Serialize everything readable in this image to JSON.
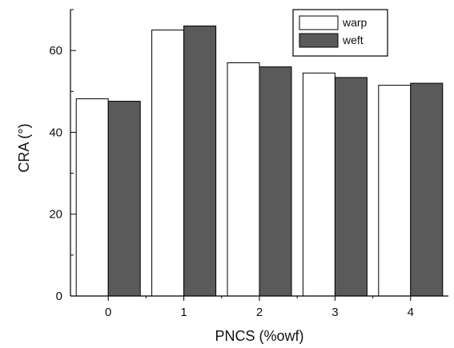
{
  "chart_data": {
    "type": "bar",
    "xlabel": "PNCS (%owf)",
    "ylabel": "CRA (°)",
    "categories": [
      "0",
      "1",
      "2",
      "3",
      "4"
    ],
    "ylim": [
      0,
      70
    ],
    "yticks": [
      0,
      20,
      40,
      60
    ],
    "series": [
      {
        "name": "warp",
        "values": [
          48.2,
          65,
          57,
          54.5,
          51.5
        ],
        "color": "#ffffff"
      },
      {
        "name": "weft",
        "values": [
          47.6,
          66,
          56,
          53.4,
          52
        ],
        "color": "#5a5a5a"
      }
    ],
    "legend_position": "top-right",
    "grid": false
  }
}
